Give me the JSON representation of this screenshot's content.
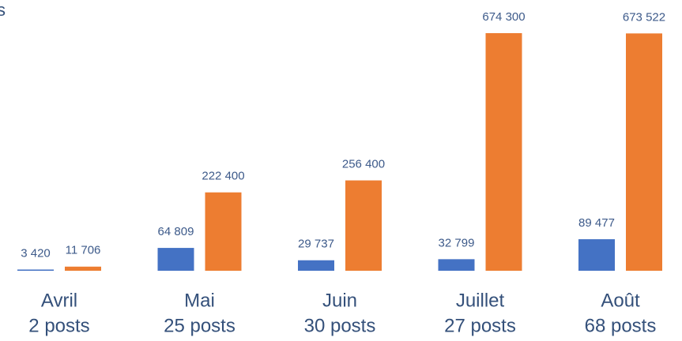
{
  "chart_data": {
    "type": "bar",
    "title": "s",
    "categories": [
      "Avril",
      "Mai",
      "Juin",
      "Juillet",
      "Août"
    ],
    "category_sublabels": [
      "2 posts",
      "25 posts",
      "30 posts",
      "27 posts",
      "68 posts"
    ],
    "series": [
      {
        "color": "#4472c4",
        "values": [
          3420,
          64809,
          29737,
          32799,
          89477
        ],
        "value_labels": [
          "3 420",
          "64 809",
          "29 737",
          "32 799",
          "89 477"
        ]
      },
      {
        "color": "#ed7d31",
        "values": [
          11706,
          222400,
          256400,
          674300,
          673522
        ],
        "value_labels": [
          "11 706",
          "222 400",
          "256 400",
          "674 300",
          "673 522"
        ]
      }
    ]
  }
}
